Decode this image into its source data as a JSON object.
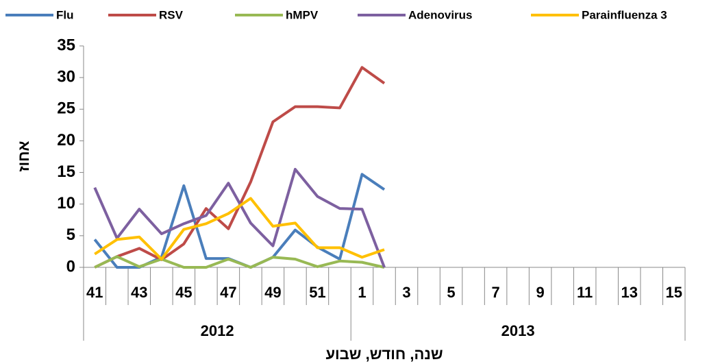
{
  "chart_data": {
    "type": "line",
    "y_label": "אחוז",
    "x_label": "שנה, חודש, שבוע",
    "categories": [
      "41",
      null,
      "43",
      null,
      "45",
      null,
      "47",
      null,
      "49",
      null,
      "51",
      null,
      "1",
      null,
      "3",
      null,
      "5",
      null,
      "7",
      null,
      "9",
      null,
      "11",
      null,
      "13",
      null,
      "15"
    ],
    "group_labels": [
      "2012",
      "2013"
    ],
    "group_sizes": [
      12,
      15
    ],
    "ylim": [
      0,
      35
    ],
    "yticks": [
      0,
      5,
      10,
      15,
      20,
      25,
      30,
      35
    ],
    "legend": "top",
    "series": [
      {
        "name": "Flu",
        "color": "#4a7ebb",
        "values": [
          4.4,
          0,
          0,
          1.6,
          12.9,
          1.4,
          1.4,
          0,
          1.6,
          5.9,
          3.2,
          1.3,
          14.7,
          12.3,
          null,
          null,
          null,
          null,
          null,
          null,
          null,
          null,
          null,
          null,
          null,
          null,
          null
        ]
      },
      {
        "name": "RSV",
        "color": "#be4b48",
        "values": [
          0,
          1.7,
          3.0,
          1.2,
          3.7,
          9.3,
          6.1,
          13.5,
          23.0,
          25.4,
          25.4,
          25.2,
          31.6,
          29.1,
          null,
          null,
          null,
          null,
          null,
          null,
          null,
          null,
          null,
          null,
          null,
          null,
          null
        ]
      },
      {
        "name": "hMPV",
        "color": "#98b954",
        "values": [
          0,
          1.7,
          0.1,
          1.3,
          0,
          0,
          1.3,
          0,
          1.6,
          1.3,
          0.1,
          1.0,
          0.8,
          0,
          null,
          null,
          null,
          null,
          null,
          null,
          null,
          null,
          null,
          null,
          null,
          null,
          null
        ]
      },
      {
        "name": "Adenovirus",
        "color": "#7d60a0",
        "values": [
          12.6,
          4.6,
          9.2,
          5.3,
          6.9,
          8.2,
          13.3,
          7.0,
          3.4,
          15.5,
          11.2,
          9.3,
          9.2,
          0,
          null,
          null,
          null,
          null,
          null,
          null,
          null,
          null,
          null,
          null,
          null,
          null,
          null
        ]
      },
      {
        "name": "Parainfluenza 3",
        "color": "#ffc000",
        "values": [
          2.1,
          4.4,
          4.8,
          1.3,
          6.0,
          6.9,
          8.5,
          10.9,
          6.5,
          7.0,
          3.1,
          3.1,
          1.6,
          2.8,
          null,
          null,
          null,
          null,
          null,
          null,
          null,
          null,
          null,
          null,
          null,
          null,
          null
        ]
      }
    ]
  }
}
